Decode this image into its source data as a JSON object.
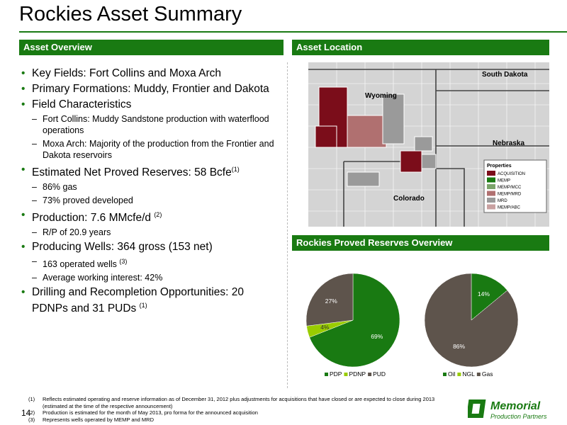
{
  "header": {
    "title": "Rockies Asset Summary"
  },
  "overview": {
    "heading": "Asset Overview",
    "bullets": [
      {
        "text": "Key Fields: Fort Collins and Moxa Arch"
      },
      {
        "text": "Primary Formations:  Muddy, Frontier and Dakota"
      },
      {
        "text": "Field Characteristics",
        "sub": [
          {
            "text": "Fort Collins: Muddy Sandstone production with waterflood operations"
          },
          {
            "text": "Moxa Arch: Majority of the production from the Frontier and Dakota reservoirs"
          }
        ]
      },
      {
        "text": "Estimated Net Proved Reserves: 58 Bcfe",
        "sup": "(1)",
        "sub": [
          {
            "text": "86% gas"
          },
          {
            "text": "73% proved developed"
          }
        ]
      },
      {
        "text": "Production: 7.6 MMcfe/d ",
        "sup": "(2)",
        "sub": [
          {
            "text": "R/P of 20.9 years"
          }
        ]
      },
      {
        "text": "Producing Wells: 364 gross (153 net)",
        "sub": [
          {
            "text": "163 operated wells ",
            "sup": "(3)"
          },
          {
            "text": "Average working interest: 42%"
          }
        ]
      },
      {
        "text": "Drilling and Recompletion Opportunities: 20 PDNPs and 31 PUDs ",
        "sup": "(1)"
      }
    ]
  },
  "location": {
    "heading": "Asset Location",
    "states": [
      "South Dakota",
      "Wyoming",
      "Nebraska",
      "Colorado"
    ],
    "legend_title": "Properties",
    "legend": [
      "ACQUISITION",
      "MEMP",
      "MEMP/MCC",
      "MEMP/MRD",
      "MRD",
      "MEMP/ABC"
    ]
  },
  "reserves": {
    "heading": "Rockies Proved Reserves Overview"
  },
  "chart_data": [
    {
      "type": "pie",
      "categories": [
        "PDP",
        "PDNP",
        "PUD"
      ],
      "values": [
        69,
        4,
        27
      ],
      "value_labels": [
        "69%",
        "4%",
        "27%"
      ],
      "colors": [
        "#197a12",
        "#99cc00",
        "#5e544c"
      ]
    },
    {
      "type": "pie",
      "categories": [
        "Oil",
        "NGL",
        "Gas"
      ],
      "values": [
        14,
        0,
        86
      ],
      "value_labels": [
        "14%",
        null,
        "86%"
      ],
      "colors": [
        "#197a12",
        "#99cc00",
        "#5e544c"
      ]
    }
  ],
  "footnotes": [
    {
      "num": "(1)",
      "text": "Reflects estimated operating and reserve information as of December 31, 2012 plus adjustments for acquisitions that have closed or are expected to close during 2013 (estimated at the time of the respective announcement)"
    },
    {
      "num": "(2)",
      "text": "Production is estimated for the month of May 2013, pro forma for the announced acquisition"
    },
    {
      "num": "(3)",
      "text": "Represents wells operated by MEMP and MRD"
    }
  ],
  "page_number": "14",
  "logo": {
    "name": "Memorial",
    "tagline": "Production Partners"
  }
}
